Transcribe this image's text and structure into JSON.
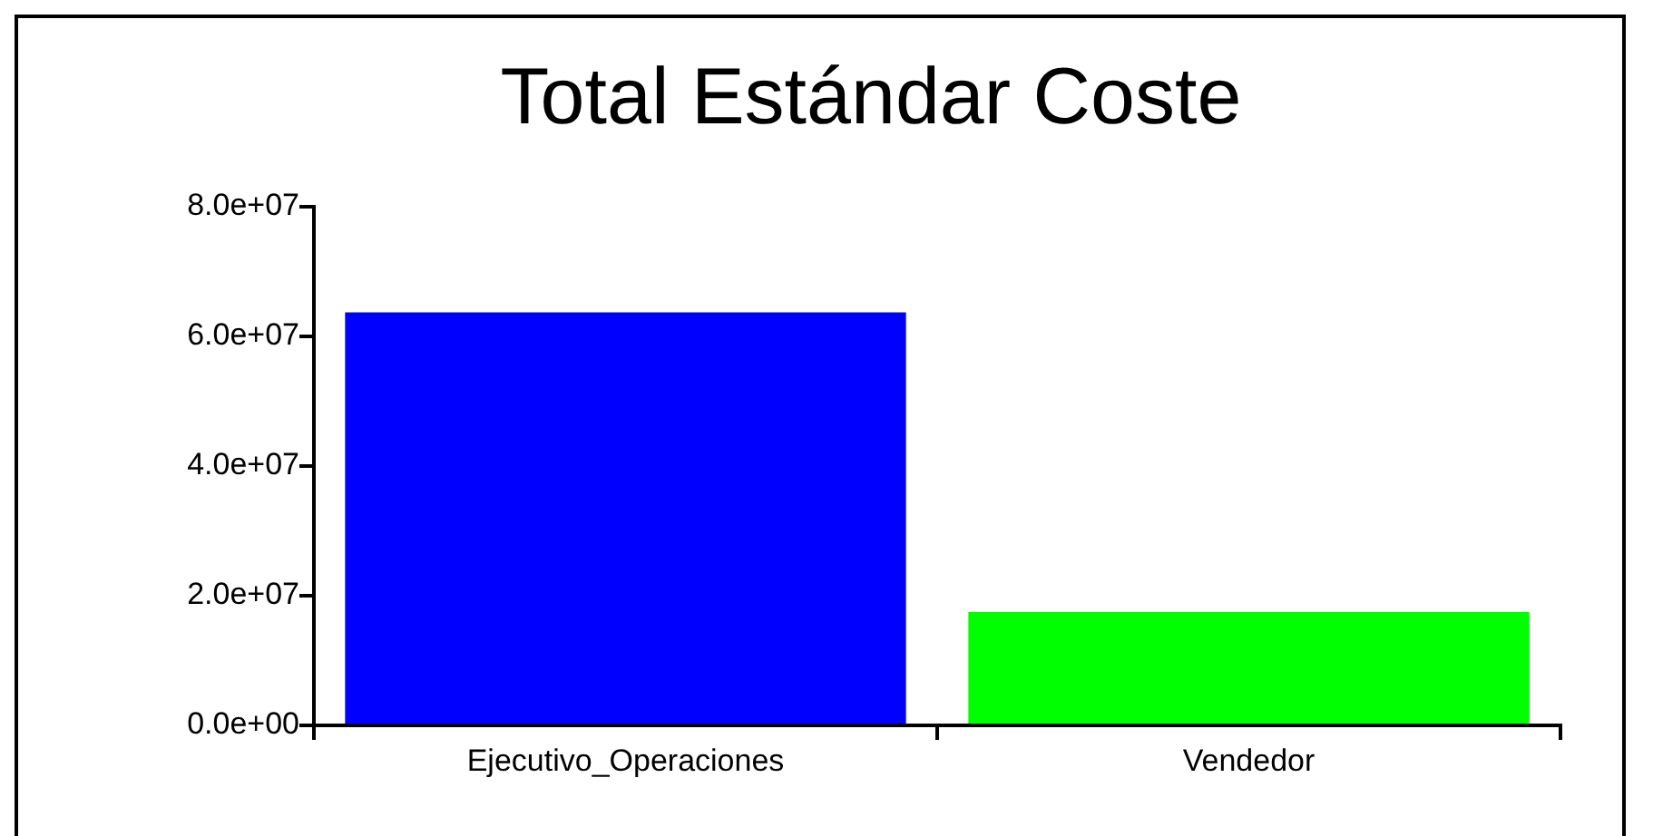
{
  "chart_data": {
    "type": "bar",
    "title": "Total Estándar Coste",
    "categories": [
      "Ejecutivo_Operaciones",
      "Vendedor"
    ],
    "values": [
      63700000,
      17500000
    ],
    "colors": [
      "#0000ff",
      "#00ff00"
    ],
    "ylim": [
      0,
      80000000
    ],
    "yticks": [
      {
        "value": 0,
        "label": "0.0e+00"
      },
      {
        "value": 20000000,
        "label": "2.0e+07"
      },
      {
        "value": 40000000,
        "label": "4.0e+07"
      },
      {
        "value": 60000000,
        "label": "6.0e+07"
      },
      {
        "value": 80000000,
        "label": "8.0e+07"
      }
    ],
    "grid": false,
    "legend": false
  }
}
